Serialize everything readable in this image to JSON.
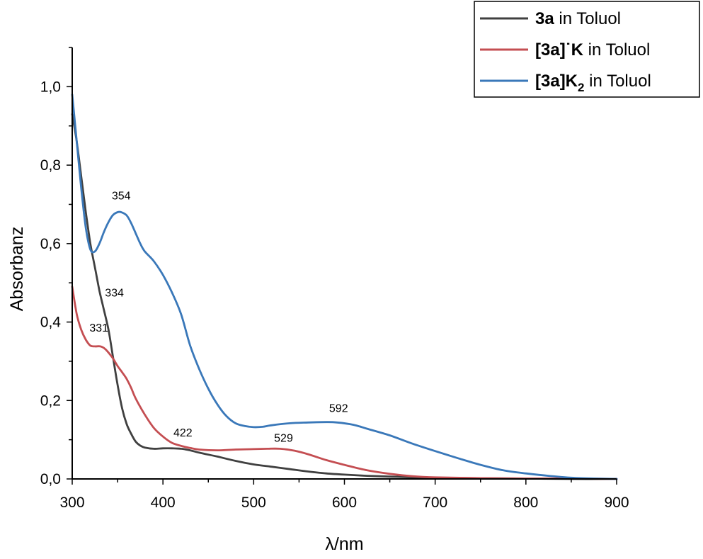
{
  "chart_data": {
    "type": "line",
    "xlabel": "λ/nm",
    "ylabel": "Absorbanz",
    "xlim": [
      300,
      900
    ],
    "ylim": [
      0,
      1.1
    ],
    "x_ticks": [
      300,
      400,
      500,
      600,
      700,
      800,
      900
    ],
    "x_tick_labels": [
      "300",
      "400",
      "500",
      "600",
      "700",
      "800",
      "900"
    ],
    "y_ticks": [
      0,
      0.2,
      0.4,
      0.6,
      0.8,
      1.0
    ],
    "y_tick_labels": [
      "0,0",
      "0,2",
      "0,4",
      "0,6",
      "0,8",
      "1,0"
    ],
    "legend_position": "top-right",
    "series": [
      {
        "name": "3a in Toluol",
        "name_bold": "3a",
        "name_rest": " in Toluol",
        "color": "#404040",
        "x": [
          300,
          305,
          310,
          315,
          320,
          325,
          330,
          334,
          340,
          345,
          350,
          355,
          360,
          365,
          370,
          375,
          380,
          390,
          400,
          410,
          420,
          430,
          440,
          460,
          480,
          500,
          520,
          540,
          560,
          580,
          600,
          625,
          650,
          700,
          750,
          800,
          850,
          900
        ],
        "y": [
          0.93,
          0.86,
          0.77,
          0.68,
          0.6,
          0.54,
          0.48,
          0.44,
          0.38,
          0.31,
          0.24,
          0.18,
          0.14,
          0.115,
          0.095,
          0.085,
          0.08,
          0.077,
          0.078,
          0.078,
          0.077,
          0.073,
          0.067,
          0.057,
          0.046,
          0.037,
          0.031,
          0.025,
          0.019,
          0.014,
          0.011,
          0.008,
          0.006,
          0.003,
          0.002,
          0.001,
          0.0,
          0.0
        ]
      },
      {
        "name": "[3a]˙K in Toluol",
        "name_bold": "[3a]˙K",
        "name_rest": " in Toluol",
        "color": "#c44e52",
        "x": [
          300,
          305,
          310,
          315,
          320,
          325,
          331,
          336,
          340,
          345,
          350,
          355,
          360,
          365,
          370,
          380,
          390,
          400,
          410,
          422,
          430,
          440,
          460,
          480,
          500,
          515,
          529,
          545,
          560,
          580,
          600,
          625,
          650,
          675,
          700,
          750,
          800,
          850,
          900
        ],
        "y": [
          0.49,
          0.42,
          0.38,
          0.355,
          0.34,
          0.338,
          0.338,
          0.332,
          0.322,
          0.307,
          0.288,
          0.272,
          0.255,
          0.232,
          0.205,
          0.164,
          0.13,
          0.108,
          0.092,
          0.083,
          0.079,
          0.075,
          0.073,
          0.075,
          0.076,
          0.077,
          0.077,
          0.072,
          0.063,
          0.048,
          0.036,
          0.022,
          0.013,
          0.007,
          0.004,
          0.002,
          0.001,
          0.001,
          0.0
        ]
      },
      {
        "name": "[3a]K2 in Toluol",
        "name_bold": "[3a]K",
        "name_sub": "2",
        "name_rest": " in Toluol",
        "color": "#3a78b9",
        "x": [
          300,
          305,
          310,
          315,
          320,
          325,
          330,
          335,
          340,
          345,
          350,
          354,
          360,
          365,
          370,
          375,
          380,
          390,
          400,
          410,
          420,
          430,
          440,
          450,
          460,
          470,
          480,
          490,
          500,
          510,
          520,
          540,
          560,
          580,
          592,
          610,
          625,
          650,
          675,
          700,
          725,
          750,
          775,
          800,
          825,
          850,
          875,
          900
        ],
        "y": [
          0.98,
          0.86,
          0.74,
          0.64,
          0.585,
          0.58,
          0.6,
          0.63,
          0.655,
          0.673,
          0.68,
          0.68,
          0.672,
          0.652,
          0.626,
          0.6,
          0.58,
          0.555,
          0.52,
          0.475,
          0.42,
          0.34,
          0.28,
          0.23,
          0.19,
          0.16,
          0.142,
          0.135,
          0.132,
          0.133,
          0.137,
          0.142,
          0.144,
          0.145,
          0.144,
          0.138,
          0.128,
          0.111,
          0.09,
          0.071,
          0.053,
          0.036,
          0.022,
          0.014,
          0.008,
          0.003,
          0.001,
          0.0
        ]
      }
    ],
    "annotations": [
      {
        "text": "354",
        "x": 354,
        "y": 0.68
      },
      {
        "text": "334",
        "x": 334,
        "y": 0.44
      },
      {
        "text": "331",
        "x": 331,
        "y": 0.338
      },
      {
        "text": "422",
        "x": 422,
        "y": 0.083
      },
      {
        "text": "529",
        "x": 529,
        "y": 0.077
      },
      {
        "text": "592",
        "x": 592,
        "y": 0.145
      }
    ]
  }
}
